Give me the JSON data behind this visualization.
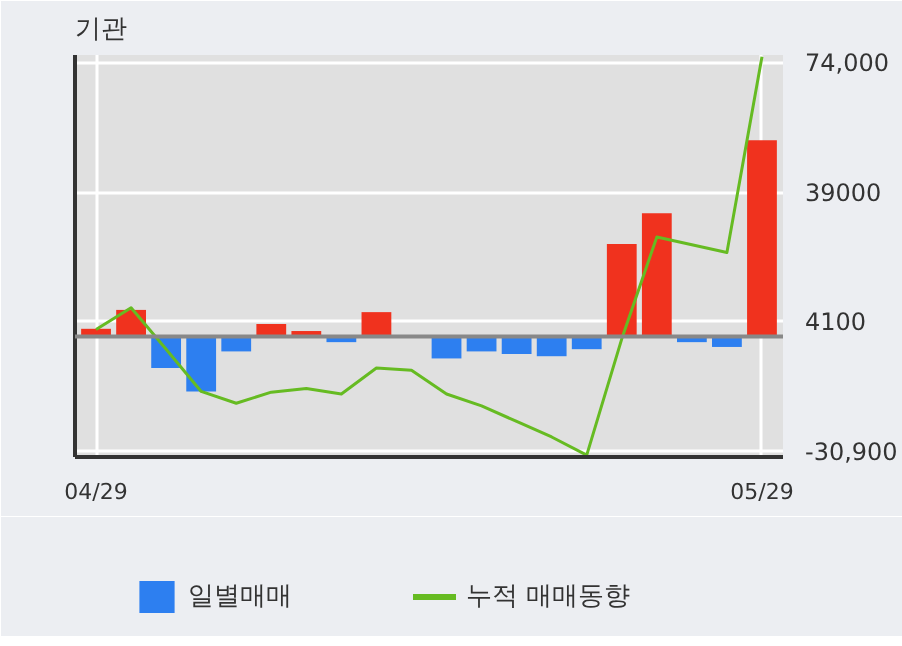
{
  "chart_data": {
    "type": "bar",
    "title": "기관",
    "categories": [
      "04/29",
      null,
      null,
      null,
      null,
      null,
      null,
      null,
      null,
      null,
      null,
      null,
      null,
      null,
      null,
      null,
      null,
      null,
      null,
      "05/29"
    ],
    "series": [
      {
        "name": "일별매매",
        "colors": [
          "#f0321e",
          "#f0321e",
          "#2d7ff0",
          "#2d7ff0",
          "#2d7ff0",
          "#f0321e",
          "#f0321e",
          "#2d7ff0",
          "#f0321e",
          "#2d7ff0",
          "#2d7ff0",
          "#2d7ff0",
          "#2d7ff0",
          "#2d7ff0",
          "#2d7ff0",
          "#f0321e",
          "#f0321e",
          "#2d7ff0",
          "#2d7ff0",
          "#f0321e"
        ],
        "values": [
          2100,
          7200,
          -8500,
          -14800,
          -4000,
          3400,
          1500,
          -1500,
          6600,
          0,
          -5900,
          -4000,
          -4700,
          -5300,
          -3400,
          25000,
          33300,
          -1500,
          -2800,
          53000
        ]
      },
      {
        "name": "누적 매매동향",
        "type": "line",
        "color": "#66bb22",
        "values": [
          1900,
          7800,
          -3400,
          -14800,
          -18000,
          -15000,
          -14000,
          -15500,
          -8500,
          -9100,
          -15500,
          -18700,
          -22900,
          -27100,
          -32000,
          -600,
          26900,
          24800,
          22700,
          75500
        ]
      }
    ],
    "ylim": [
      -32500,
      76000
    ],
    "yticks": [
      {
        "value": 74000,
        "label": "74,000"
      },
      39000,
      4100,
      {
        "value": -30900,
        "label": "-30,900"
      }
    ],
    "grid": true,
    "legend": "bottom"
  }
}
